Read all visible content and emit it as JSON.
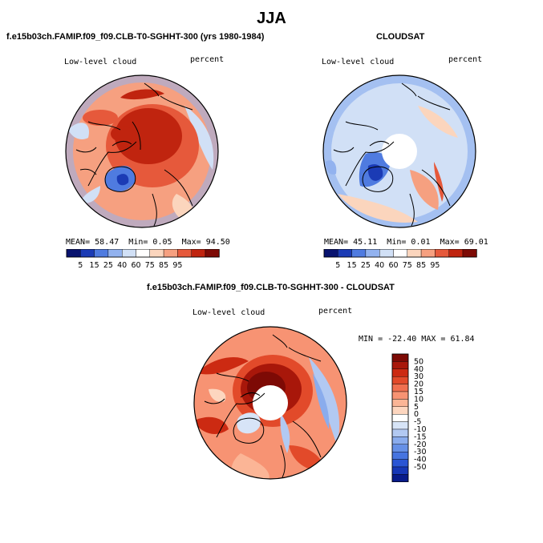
{
  "season": "JJA",
  "colors": {
    "scale11": [
      "#08136f",
      "#1b3bb5",
      "#4f7be0",
      "#92b2ef",
      "#d1e0f6",
      "#ffffff",
      "#fbd5bd",
      "#f6a080",
      "#e6593b",
      "#c0240f",
      "#7d0a05"
    ],
    "diff": [
      "#7d0a05",
      "#a8170a",
      "#cc2a12",
      "#e24a2a",
      "#f07050",
      "#f79373",
      "#fbb596",
      "#fdd6bf",
      "#ffffff",
      "#d7e4f7",
      "#b2c9f2",
      "#8aaced",
      "#6690e6",
      "#4674e0",
      "#2a55d4",
      "#1637b6",
      "#081b8a"
    ]
  },
  "panels": [
    {
      "id": "model",
      "title": "f.e15b03ch.FAMIP.f09_f09.CLB-T0-SGHHT-300 (yrs 1980-1984)",
      "field_label": "Low-level cloud",
      "units": "percent",
      "stats": {
        "mean_label": "MEAN=",
        "mean": "58.47",
        "min_label": "Min=",
        "min": "0.05",
        "max_label": "Max=",
        "max": "94.50"
      },
      "colorbar_ticks": [
        "5",
        "15",
        "25",
        "40",
        "60",
        "75",
        "85",
        "95"
      ]
    },
    {
      "id": "obs",
      "title": "CLOUDSAT",
      "field_label": "Low-level cloud",
      "units": "percent",
      "stats": {
        "mean_label": "MEAN=",
        "mean": "45.11",
        "min_label": "Min=",
        "min": "0.01",
        "max_label": "Max=",
        "max": "69.01"
      },
      "colorbar_ticks": [
        "5",
        "15",
        "25",
        "40",
        "60",
        "75",
        "85",
        "95"
      ]
    },
    {
      "id": "diff",
      "title": "f.e15b03ch.FAMIP.f09_f09.CLB-T0-SGHHT-300 - CLOUDSAT",
      "field_label": "Low-level cloud",
      "units": "percent",
      "stats": {
        "min_label": "MIN =",
        "min": "-22.40",
        "max_label": "MAX =",
        "max": "61.84"
      },
      "colorbar_ticks": [
        "50",
        "40",
        "30",
        "20",
        "15",
        "10",
        "5",
        "0",
        "-5",
        "-10",
        "-15",
        "-20",
        "-30",
        "-40",
        "-50"
      ]
    }
  ]
}
